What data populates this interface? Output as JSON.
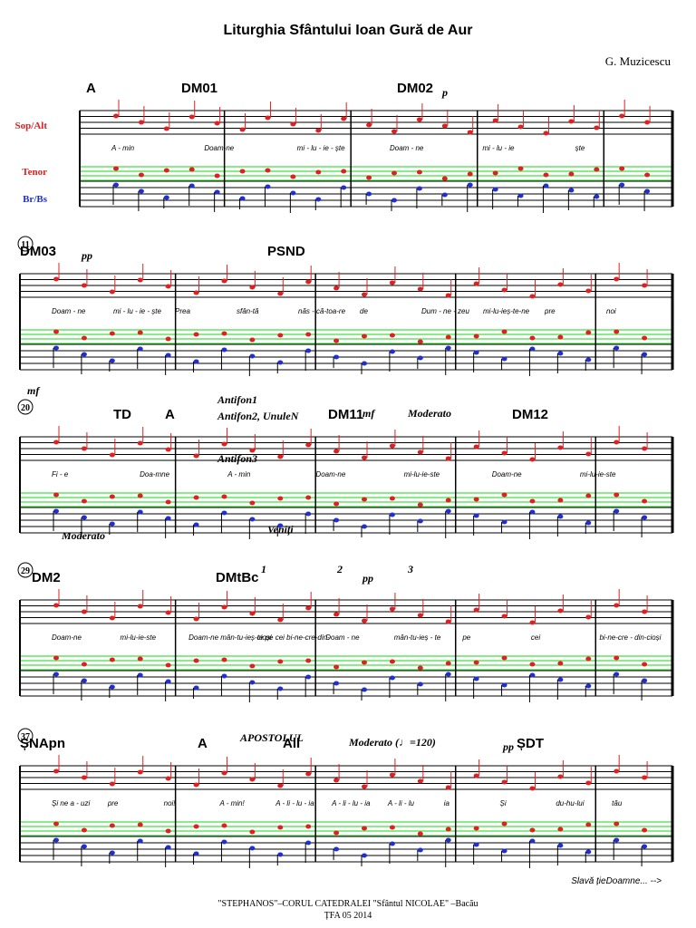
{
  "title": "Liturghia Sfântului Ioan Gură de Aur",
  "composer": "G. Muzicescu",
  "parts": [
    "Sop/Alt",
    "Tenor",
    "Br/Bs"
  ],
  "systems": [
    {
      "markers": [
        "A",
        "DM01",
        "DM02"
      ],
      "marks": [
        "p"
      ],
      "lyrics": [
        "A - min",
        "Doam-ne",
        "mi - lu - ie - ște",
        "Doam - ne",
        "mi - lu - ie",
        "ște"
      ]
    },
    {
      "measure": "11",
      "markers": [
        "DM03",
        "PSND"
      ],
      "marks": [
        "pp"
      ],
      "lyrics": [
        "Doam - ne",
        "mi - lu - ie - ște",
        "Prea",
        "sfân-tă",
        "năs - că-toa-re",
        "de",
        "Dum - ne - zeu",
        "mi-lu-ieș-te-ne",
        "pre",
        "noi"
      ]
    },
    {
      "measure": "20",
      "markers": [
        "TD",
        "A",
        "DM11",
        "DM12"
      ],
      "marks": [
        "mf",
        "Antifon1",
        "Antifon2, UnuleN",
        "Antifon3",
        "mf",
        "Moderato",
        "Veniți"
      ],
      "lyrics": [
        "Fi - e",
        "Doa-mne",
        "A - min",
        "Doam-ne",
        "mi-lu-ie-ste",
        "Doam-ne",
        "mi-lu-ie-ste"
      ]
    },
    {
      "measure": "29",
      "markers": [
        "DM2",
        "DMtBc"
      ],
      "marks": [
        "Moderato",
        "1",
        "2",
        "pp",
        "3"
      ],
      "lyrics": [
        "Doam-ne",
        "mi-lu-ie-ste",
        "Doam-ne mân-tu-ieș-te pe cei bi-ne-cre-din-",
        "cioși",
        "Doam - ne",
        "mân-tu-ieș - te",
        "pe",
        "cei",
        "bi-ne-cre - din-cioși"
      ]
    },
    {
      "measure": "37",
      "markers": [
        "ȘNApn",
        "A",
        "All",
        "ȘDT"
      ],
      "marks": [
        "APOSTOLUL",
        "Moderato (♩=120)",
        "pp"
      ],
      "lyrics": [
        "Și ne a - uzi",
        "pre",
        "noi!",
        "A - min!",
        "A - li - lu - ia",
        "A - li - lu - ia",
        "A - li - lu",
        "ia",
        "Și",
        "du-hu-lui",
        "tău"
      ]
    }
  ],
  "continuation": "Slavă țieDoamne... -->",
  "footer": [
    "\"STEPHANOS\"–CORUL CATEDRALEI \"Sfântul NICOLAE\" –Bacău",
    "ȚFA 05 2014"
  ]
}
